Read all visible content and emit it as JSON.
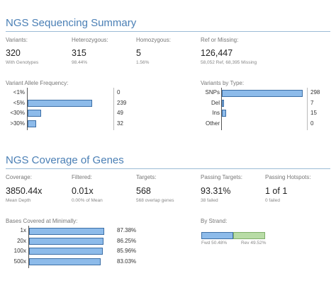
{
  "sequencing": {
    "title": "NGS Sequencing Summary",
    "stats": [
      {
        "label": "Variants:",
        "value": "320",
        "sub": "With Genotypes"
      },
      {
        "label": "Heterozygous:",
        "value": "315",
        "sub": "98.44%"
      },
      {
        "label": "Homozygous:",
        "value": "5",
        "sub": "1.56%"
      },
      {
        "label": "Ref or Missing:",
        "value": "126,447",
        "sub": "58,052 Ref, 68,395 Missing"
      }
    ],
    "allele_freq": {
      "title": "Variant Allele Frequency:",
      "rows": [
        {
          "label": "<1%",
          "value": "0",
          "n": 0
        },
        {
          "label": "<5%",
          "value": "239",
          "n": 239
        },
        {
          "label": "<30%",
          "value": "49",
          "n": 49
        },
        {
          "label": ">30%",
          "value": "32",
          "n": 32
        }
      ]
    },
    "by_type": {
      "title": "Variants by Type:",
      "rows": [
        {
          "label": "SNPs",
          "value": "298",
          "n": 298
        },
        {
          "label": "Del",
          "value": "7",
          "n": 7
        },
        {
          "label": "Ins",
          "value": "15",
          "n": 15
        },
        {
          "label": "Other",
          "value": "0",
          "n": 0
        }
      ]
    }
  },
  "coverage": {
    "title": "NGS Coverage of Genes",
    "stats": [
      {
        "label": "Coverage:",
        "value": "3850.44x",
        "sub": "Mean Depth"
      },
      {
        "label": "Filtered:",
        "value": "0.01x",
        "sub": "0.00% of Mean"
      },
      {
        "label": "Targets:",
        "value": "568",
        "sub": "568 overlap genes"
      },
      {
        "label": "Passing Targets:",
        "value": "93.31%",
        "sub": "38 failed"
      },
      {
        "label": "Passing Hotspots:",
        "value": "1 of 1",
        "sub": "0 failed"
      }
    ],
    "bases": {
      "title": "Bases Covered at Minimally:",
      "rows": [
        {
          "label": "1x",
          "value": "87.38%",
          "pct": 87.38
        },
        {
          "label": "20x",
          "value": "86.25%",
          "pct": 86.25
        },
        {
          "label": "100x",
          "value": "85.96%",
          "pct": 85.96
        },
        {
          "label": "500x",
          "value": "83.03%",
          "pct": 83.03
        }
      ]
    },
    "strand": {
      "title": "By Strand:",
      "fwd_label": "Fwd 50.48%",
      "rev_label": "Rev 49.52%",
      "fwd_pct": 50.48,
      "rev_pct": 49.52,
      "fwd_color": "#8dbbea",
      "rev_color": "#b8dca6"
    }
  }
}
